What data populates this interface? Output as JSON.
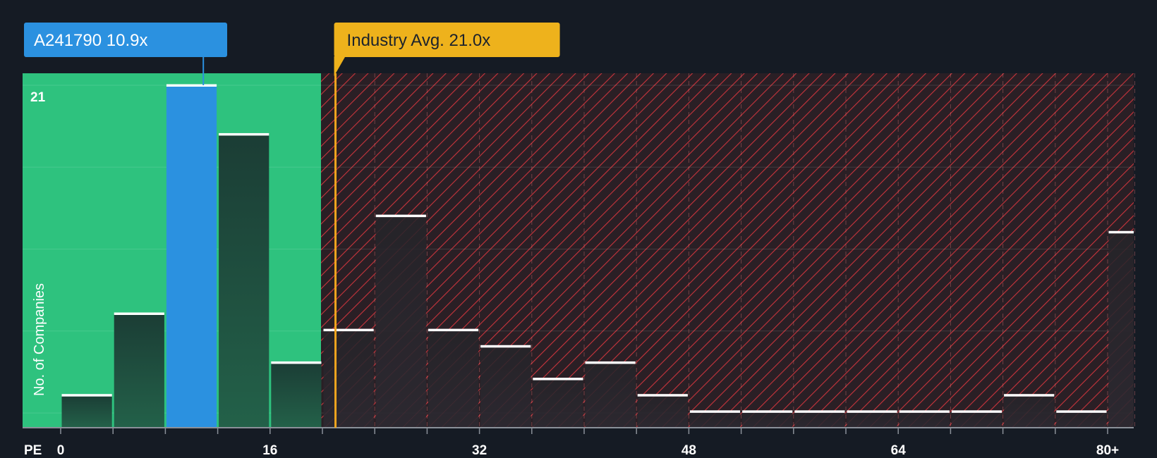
{
  "chart_data": {
    "type": "bar",
    "title": "",
    "xlabel": "PE",
    "ylabel": "No. of Companies",
    "x_tick_labels": [
      "0",
      "16",
      "32",
      "48",
      "64",
      "80+"
    ],
    "x_tick_values": [
      0,
      16,
      32,
      48,
      64,
      80
    ],
    "y_tick_label": "21",
    "ylim": [
      0,
      21
    ],
    "bin_width": 4,
    "bins": [
      {
        "start": 0,
        "count": 2
      },
      {
        "start": 4,
        "count": 7
      },
      {
        "start": 8,
        "count": 21
      },
      {
        "start": 12,
        "count": 18
      },
      {
        "start": 16,
        "count": 4
      },
      {
        "start": 20,
        "count": 6
      },
      {
        "start": 24,
        "count": 13
      },
      {
        "start": 28,
        "count": 6
      },
      {
        "start": 32,
        "count": 5
      },
      {
        "start": 36,
        "count": 3
      },
      {
        "start": 40,
        "count": 4
      },
      {
        "start": 44,
        "count": 2
      },
      {
        "start": 48,
        "count": 1
      },
      {
        "start": 52,
        "count": 1
      },
      {
        "start": 56,
        "count": 1
      },
      {
        "start": 60,
        "count": 1
      },
      {
        "start": 64,
        "count": 1
      },
      {
        "start": 68,
        "count": 1
      },
      {
        "start": 72,
        "count": 2
      },
      {
        "start": 76,
        "count": 1
      },
      {
        "start": 80,
        "count": 12
      }
    ],
    "company": {
      "label": "A241790 10.9x",
      "value": 10.9,
      "bin_start": 8
    },
    "industry_avg": {
      "label": "Industry Avg. 21.0x",
      "value": 21.0
    },
    "fair_zone_upper": 20,
    "colors": {
      "background": "#151b24",
      "fair_zone": "#2ec27e",
      "company_bar": "#2b91e0",
      "callout_company": "#2b91e0",
      "callout_industry": "#eeb21c",
      "industry_line": "#f0a51f",
      "hatch": "#c9343c",
      "overvalued_bg": "#2a1f25",
      "bar_dark": "#1e4a3e",
      "bar_hatched": "#2b2830",
      "bar_cap": "#ffffff",
      "text": "#ffffff"
    }
  }
}
